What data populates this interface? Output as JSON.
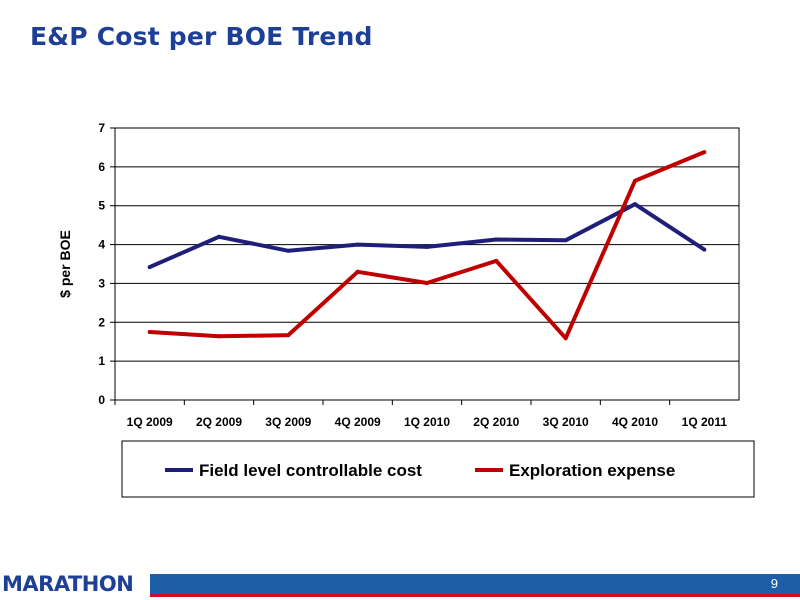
{
  "page": {
    "title": "E&P Cost per BOE Trend",
    "page_number": "9",
    "logo_text": "MARATHON"
  },
  "colors": {
    "title": "#1d3f95",
    "field_series": "#1f1f7a",
    "exploration_series": "#c00000",
    "footer_blue": "#1d5ea8",
    "footer_red": "#c8102e"
  },
  "chart_data": {
    "type": "line",
    "title": "",
    "xlabel": "",
    "ylabel": "$ per BOE",
    "ylim": [
      0,
      7
    ],
    "yticks": [
      "0",
      "1",
      "2",
      "3",
      "4",
      "5",
      "6",
      "7"
    ],
    "grid": true,
    "legend_position": "bottom",
    "categories": [
      "1Q 2009",
      "2Q 2009",
      "3Q 2009",
      "4Q 2009",
      "1Q 2010",
      "2Q 2010",
      "3Q 2010",
      "4Q 2010",
      "1Q 2011"
    ],
    "series": [
      {
        "name": "Field level controllable cost",
        "color": "#1f1f7a",
        "values": [
          3.42,
          4.2,
          3.84,
          4.0,
          3.94,
          4.13,
          4.11,
          5.04,
          3.87
        ]
      },
      {
        "name": "Exploration expense",
        "color": "#c00000",
        "values": [
          1.75,
          1.64,
          1.67,
          3.3,
          3.01,
          3.58,
          1.59,
          5.64,
          6.38
        ]
      }
    ]
  }
}
